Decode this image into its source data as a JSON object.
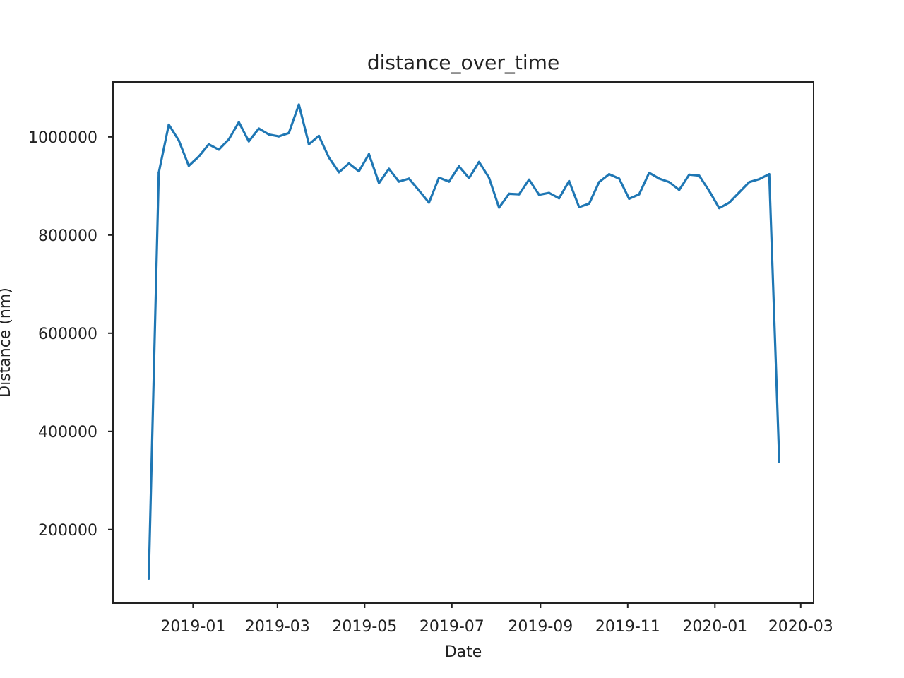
{
  "chart_data": {
    "type": "line",
    "title": "distance_over_time",
    "xlabel": "Date",
    "ylabel": "Distance (nm)",
    "x_ticks": [
      "2019-01",
      "2019-03",
      "2019-05",
      "2019-07",
      "2019-09",
      "2019-11",
      "2020-01",
      "2020-03"
    ],
    "y_ticks": [
      "200000",
      "400000",
      "600000",
      "800000",
      "1000000"
    ],
    "xlim": [
      "2018-11-06",
      "2020-03-10"
    ],
    "ylim": [
      50000,
      1112000
    ],
    "grid": false,
    "series": [
      {
        "color": "#1f77b4",
        "x": [
          "2018-12-01",
          "2018-12-08",
          "2018-12-15",
          "2018-12-22",
          "2018-12-29",
          "2019-01-05",
          "2019-01-12",
          "2019-01-19",
          "2019-01-26",
          "2019-02-02",
          "2019-02-09",
          "2019-02-16",
          "2019-02-23",
          "2019-03-02",
          "2019-03-09",
          "2019-03-16",
          "2019-03-23",
          "2019-03-30",
          "2019-04-06",
          "2019-04-13",
          "2019-04-20",
          "2019-04-27",
          "2019-05-04",
          "2019-05-11",
          "2019-05-18",
          "2019-05-25",
          "2019-06-01",
          "2019-06-08",
          "2019-06-15",
          "2019-06-22",
          "2019-06-29",
          "2019-07-06",
          "2019-07-13",
          "2019-07-20",
          "2019-07-27",
          "2019-08-03",
          "2019-08-10",
          "2019-08-17",
          "2019-08-24",
          "2019-08-31",
          "2019-09-07",
          "2019-09-14",
          "2019-09-21",
          "2019-09-28",
          "2019-10-05",
          "2019-10-12",
          "2019-10-19",
          "2019-10-26",
          "2019-11-02",
          "2019-11-09",
          "2019-11-16",
          "2019-11-23",
          "2019-11-30",
          "2019-12-07",
          "2019-12-14",
          "2019-12-21",
          "2019-12-28",
          "2020-01-04",
          "2020-01-11",
          "2020-01-18",
          "2020-01-25",
          "2020-02-01",
          "2020-02-08",
          "2020-02-15"
        ],
        "y": [
          100000,
          927000,
          1025000,
          993000,
          941000,
          960000,
          985000,
          974000,
          995000,
          1030000,
          991000,
          1017000,
          1005000,
          1001000,
          1008000,
          1066000,
          985000,
          1002000,
          958000,
          928000,
          946000,
          930000,
          965000,
          906000,
          935000,
          909000,
          915000,
          891000,
          866000,
          917000,
          909000,
          940000,
          916000,
          949000,
          917000,
          856000,
          884000,
          883000,
          913000,
          882000,
          886000,
          875000,
          910000,
          857000,
          864000,
          908000,
          924000,
          915000,
          874000,
          883000,
          927000,
          915000,
          908000,
          892000,
          923000,
          921000,
          890000,
          855000,
          866000,
          887000,
          908000,
          914000,
          924000,
          338000
        ]
      }
    ]
  }
}
